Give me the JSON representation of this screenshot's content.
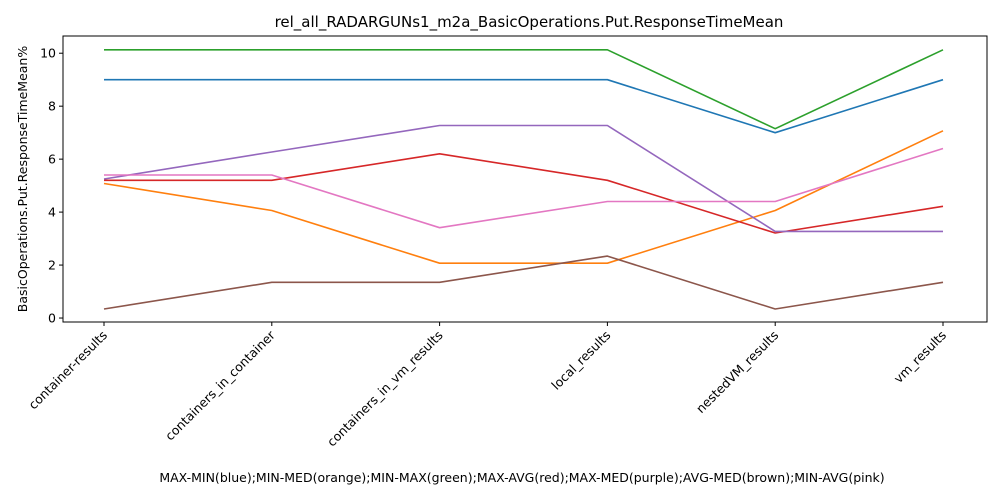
{
  "chart_data": {
    "type": "line",
    "title": "rel_all_RADARGUNs1_m2a_BasicOperations.Put.ResponseTimeMean",
    "xlabel": "MAX-MIN(blue);MIN-MED(orange);MIN-MAX(green);MAX-AVG(red);MAX-MED(purple);AVG-MED(brown);MIN-AVG(pink)",
    "ylabel": "BasicOperations.Put.ResponseTimeMean%",
    "categories": [
      "container-results",
      "containers_in_container",
      "containers_in_vm_results",
      "local_results",
      "nestedVM_results",
      "vm_results"
    ],
    "ylim": [
      -0.15,
      10.65
    ],
    "yticks": [
      "0",
      "2",
      "4",
      "6",
      "8",
      "10"
    ],
    "grid": false,
    "series": [
      {
        "color": "#1f77b4",
        "values": [
          9.0,
          9.0,
          9.0,
          9.0,
          7.0,
          9.0
        ]
      },
      {
        "color": "#ff7f0e",
        "values": [
          5.08,
          4.06,
          2.07,
          2.07,
          4.06,
          7.07
        ]
      },
      {
        "color": "#2ca02c",
        "values": [
          10.13,
          10.13,
          10.13,
          10.13,
          7.15,
          10.13
        ]
      },
      {
        "color": "#d62728",
        "values": [
          5.2,
          5.2,
          6.2,
          5.2,
          3.21,
          4.22
        ]
      },
      {
        "color": "#9467bd",
        "values": [
          5.25,
          6.27,
          7.27,
          7.27,
          3.27,
          3.27
        ]
      },
      {
        "color": "#8c564b",
        "values": [
          0.34,
          1.35,
          1.35,
          2.34,
          0.34,
          1.35
        ]
      },
      {
        "color": "#e377c2",
        "values": [
          5.4,
          5.4,
          3.41,
          4.4,
          4.4,
          6.4
        ]
      }
    ]
  }
}
